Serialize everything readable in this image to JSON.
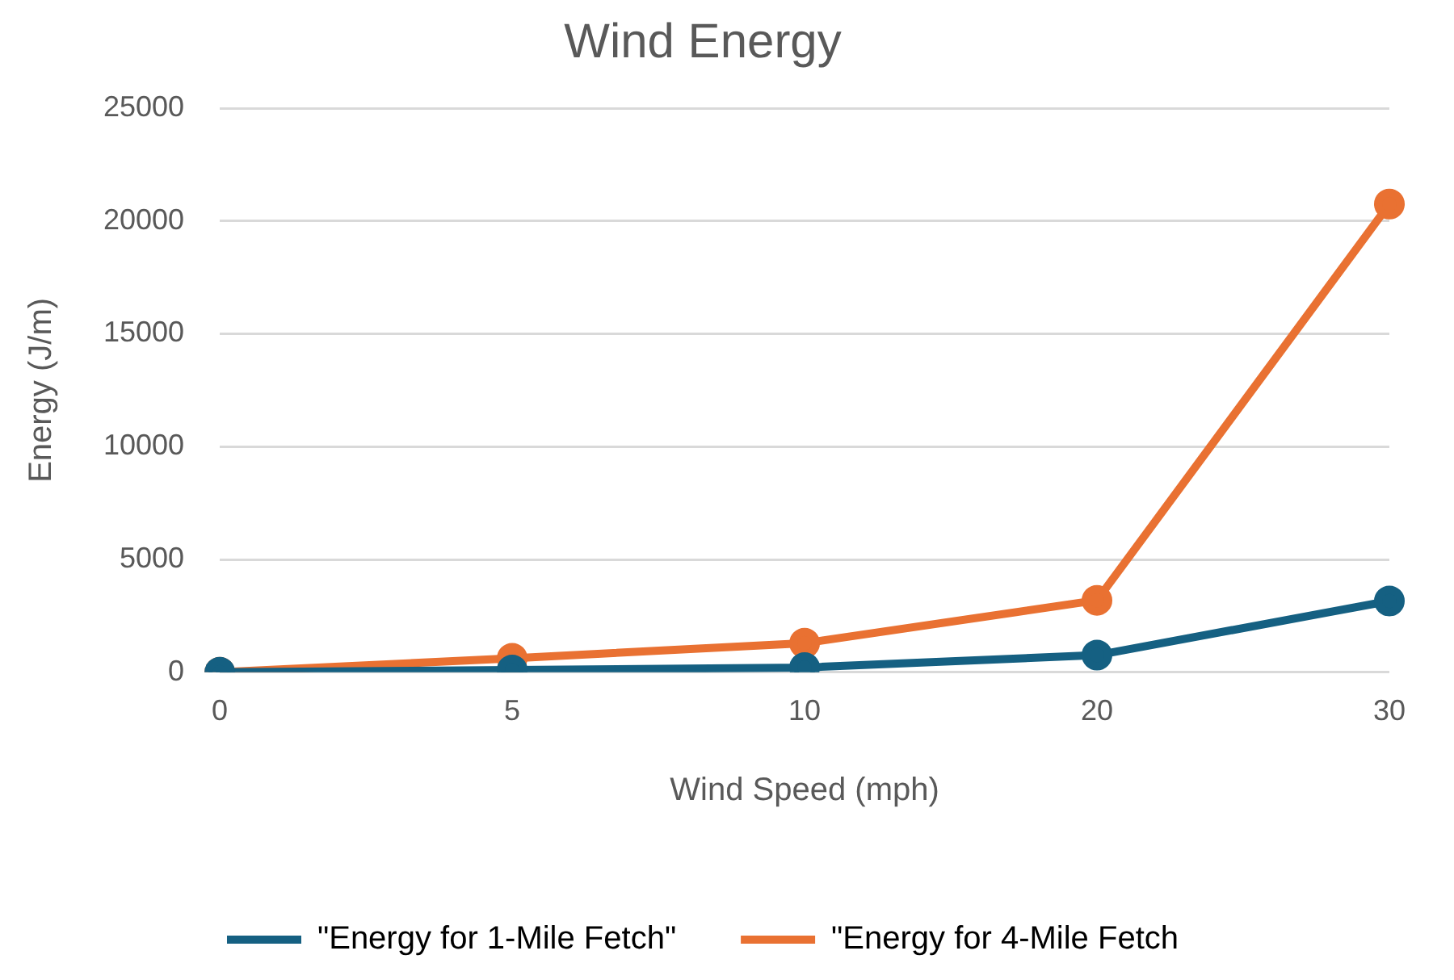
{
  "chart_data": {
    "type": "line",
    "title": "Wind Energy",
    "xlabel": "Wind Speed (mph)",
    "ylabel": "Energy (J/m)",
    "categories": [
      "0",
      "5",
      "10",
      "20",
      "30"
    ],
    "series": [
      {
        "name": "\"Energy for 1-Mile Fetch\"",
        "color": "#156082",
        "values": [
          0,
          100,
          210,
          760,
          3160
        ]
      },
      {
        "name": "\"Energy for 4-Mile Fetch",
        "color": "#e97132",
        "values": [
          0,
          620,
          1290,
          3190,
          20750
        ]
      }
    ],
    "ylim": [
      0,
      25000
    ],
    "yticks": [
      0,
      5000,
      10000,
      15000,
      20000,
      25000
    ],
    "grid": "y",
    "legend": "bottom",
    "marker": "circle",
    "line_style": "solid"
  }
}
